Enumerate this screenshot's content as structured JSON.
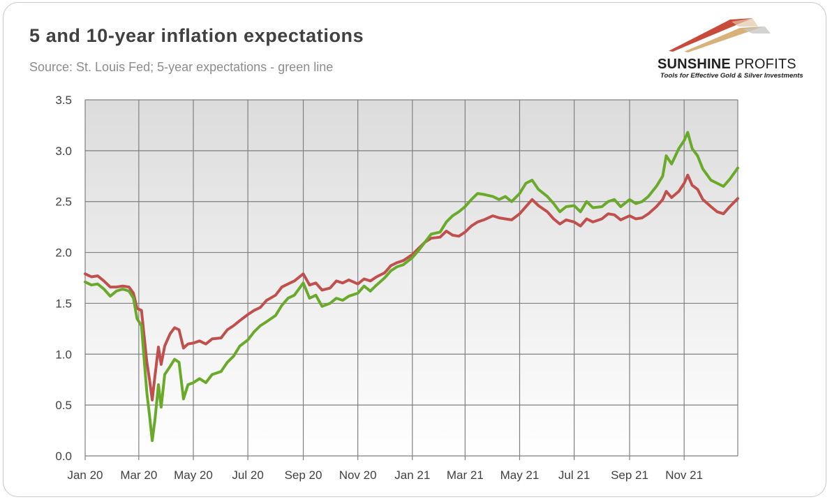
{
  "title": "5 and 10-year inflation expectations",
  "subtitle": "Source: St. Louis Fed; 5-year expectations - green line",
  "logo": {
    "name_part1": "SUNSHINE",
    "name_part2": " PROFITS",
    "tagline": "Tools for Effective Gold & Silver Investments"
  },
  "colors": {
    "series_5y": "#6aaa2a",
    "series_10y": "#c0504d",
    "plot_bg_top": "#dcdcdc",
    "plot_bg_bottom": "#ffffff",
    "grid": "#7f7f7f"
  },
  "chart_data": {
    "type": "line",
    "title": "5 and 10-year inflation expectations",
    "subtitle": "Source: St. Louis Fed; 5-year expectations - green line",
    "x_tick_labels": [
      "Jan 20",
      "Mar 20",
      "May 20",
      "Jul 20",
      "Sep 20",
      "Nov 20",
      "Jan 21",
      "Mar 21",
      "May 21",
      "Jul 21",
      "Sep 21",
      "Nov 21"
    ],
    "x_tick_dates": [
      "2020-01-01",
      "2020-03-01",
      "2020-05-01",
      "2020-07-01",
      "2020-09-01",
      "2020-11-01",
      "2021-01-01",
      "2021-03-01",
      "2021-05-01",
      "2021-07-01",
      "2021-09-01",
      "2021-11-01"
    ],
    "xlim": [
      "2020-01-01",
      "2021-12-31"
    ],
    "ylim": [
      0,
      3.5
    ],
    "yticks": [
      0.0,
      0.5,
      1.0,
      1.5,
      2.0,
      2.5,
      3.0,
      3.5
    ],
    "ytick_labels": [
      "0.0",
      "0.5",
      "1.0",
      "1.5",
      "2.0",
      "2.5",
      "3.0",
      "3.5"
    ],
    "grid": true,
    "legend": "none",
    "series": [
      {
        "color": "#6aaa2a",
        "points": [
          [
            "2020-01-01",
            1.71
          ],
          [
            "2020-01-08",
            1.68
          ],
          [
            "2020-01-15",
            1.69
          ],
          [
            "2020-01-22",
            1.64
          ],
          [
            "2020-01-29",
            1.57
          ],
          [
            "2020-02-05",
            1.62
          ],
          [
            "2020-02-12",
            1.64
          ],
          [
            "2020-02-19",
            1.62
          ],
          [
            "2020-02-24",
            1.55
          ],
          [
            "2020-02-28",
            1.35
          ],
          [
            "2020-03-04",
            1.28
          ],
          [
            "2020-03-07",
            0.95
          ],
          [
            "2020-03-10",
            0.62
          ],
          [
            "2020-03-13",
            0.4
          ],
          [
            "2020-03-16",
            0.15
          ],
          [
            "2020-03-19",
            0.35
          ],
          [
            "2020-03-23",
            0.7
          ],
          [
            "2020-03-26",
            0.48
          ],
          [
            "2020-03-30",
            0.8
          ],
          [
            "2020-04-05",
            0.88
          ],
          [
            "2020-04-10",
            0.95
          ],
          [
            "2020-04-15",
            0.92
          ],
          [
            "2020-04-20",
            0.56
          ],
          [
            "2020-04-25",
            0.7
          ],
          [
            "2020-05-01",
            0.72
          ],
          [
            "2020-05-08",
            0.76
          ],
          [
            "2020-05-15",
            0.72
          ],
          [
            "2020-05-22",
            0.8
          ],
          [
            "2020-06-01",
            0.83
          ],
          [
            "2020-06-08",
            0.92
          ],
          [
            "2020-06-15",
            0.98
          ],
          [
            "2020-06-22",
            1.08
          ],
          [
            "2020-07-01",
            1.14
          ],
          [
            "2020-07-08",
            1.22
          ],
          [
            "2020-07-15",
            1.28
          ],
          [
            "2020-07-22",
            1.32
          ],
          [
            "2020-08-01",
            1.38
          ],
          [
            "2020-08-08",
            1.48
          ],
          [
            "2020-08-15",
            1.55
          ],
          [
            "2020-08-22",
            1.58
          ],
          [
            "2020-09-01",
            1.7
          ],
          [
            "2020-09-08",
            1.55
          ],
          [
            "2020-09-15",
            1.58
          ],
          [
            "2020-09-22",
            1.47
          ],
          [
            "2020-10-01",
            1.5
          ],
          [
            "2020-10-08",
            1.55
          ],
          [
            "2020-10-15",
            1.53
          ],
          [
            "2020-10-22",
            1.57
          ],
          [
            "2020-11-01",
            1.6
          ],
          [
            "2020-11-08",
            1.67
          ],
          [
            "2020-11-15",
            1.62
          ],
          [
            "2020-11-22",
            1.68
          ],
          [
            "2020-12-01",
            1.75
          ],
          [
            "2020-12-08",
            1.82
          ],
          [
            "2020-12-15",
            1.86
          ],
          [
            "2020-12-22",
            1.88
          ],
          [
            "2021-01-01",
            1.95
          ],
          [
            "2021-01-08",
            2.02
          ],
          [
            "2021-01-15",
            2.1
          ],
          [
            "2021-01-22",
            2.18
          ],
          [
            "2021-02-01",
            2.2
          ],
          [
            "2021-02-08",
            2.3
          ],
          [
            "2021-02-15",
            2.36
          ],
          [
            "2021-02-22",
            2.4
          ],
          [
            "2021-03-01",
            2.45
          ],
          [
            "2021-03-08",
            2.52
          ],
          [
            "2021-03-15",
            2.58
          ],
          [
            "2021-03-22",
            2.57
          ],
          [
            "2021-04-01",
            2.55
          ],
          [
            "2021-04-08",
            2.52
          ],
          [
            "2021-04-15",
            2.55
          ],
          [
            "2021-04-22",
            2.5
          ],
          [
            "2021-05-01",
            2.58
          ],
          [
            "2021-05-08",
            2.68
          ],
          [
            "2021-05-15",
            2.71
          ],
          [
            "2021-05-22",
            2.62
          ],
          [
            "2021-06-01",
            2.55
          ],
          [
            "2021-06-08",
            2.48
          ],
          [
            "2021-06-15",
            2.4
          ],
          [
            "2021-06-22",
            2.45
          ],
          [
            "2021-07-01",
            2.46
          ],
          [
            "2021-07-08",
            2.4
          ],
          [
            "2021-07-15",
            2.5
          ],
          [
            "2021-07-22",
            2.44
          ],
          [
            "2021-08-01",
            2.45
          ],
          [
            "2021-08-08",
            2.5
          ],
          [
            "2021-08-15",
            2.52
          ],
          [
            "2021-08-22",
            2.45
          ],
          [
            "2021-09-01",
            2.52
          ],
          [
            "2021-09-08",
            2.48
          ],
          [
            "2021-09-15",
            2.5
          ],
          [
            "2021-09-22",
            2.55
          ],
          [
            "2021-10-01",
            2.65
          ],
          [
            "2021-10-08",
            2.75
          ],
          [
            "2021-10-12",
            2.95
          ],
          [
            "2021-10-18",
            2.87
          ],
          [
            "2021-10-26",
            3.02
          ],
          [
            "2021-11-01",
            3.1
          ],
          [
            "2021-11-05",
            3.18
          ],
          [
            "2021-11-10",
            3.02
          ],
          [
            "2021-11-16",
            2.95
          ],
          [
            "2021-11-22",
            2.82
          ],
          [
            "2021-12-01",
            2.71
          ],
          [
            "2021-12-08",
            2.68
          ],
          [
            "2021-12-15",
            2.65
          ],
          [
            "2021-12-22",
            2.72
          ],
          [
            "2021-12-31",
            2.83
          ]
        ]
      },
      {
        "color": "#c0504d",
        "points": [
          [
            "2020-01-01",
            1.79
          ],
          [
            "2020-01-08",
            1.76
          ],
          [
            "2020-01-15",
            1.77
          ],
          [
            "2020-01-22",
            1.72
          ],
          [
            "2020-01-29",
            1.66
          ],
          [
            "2020-02-05",
            1.66
          ],
          [
            "2020-02-12",
            1.67
          ],
          [
            "2020-02-19",
            1.66
          ],
          [
            "2020-02-24",
            1.6
          ],
          [
            "2020-02-28",
            1.45
          ],
          [
            "2020-03-04",
            1.43
          ],
          [
            "2020-03-07",
            1.18
          ],
          [
            "2020-03-10",
            0.92
          ],
          [
            "2020-03-13",
            0.75
          ],
          [
            "2020-03-16",
            0.55
          ],
          [
            "2020-03-19",
            0.78
          ],
          [
            "2020-03-23",
            1.07
          ],
          [
            "2020-03-26",
            0.9
          ],
          [
            "2020-03-30",
            1.08
          ],
          [
            "2020-04-05",
            1.2
          ],
          [
            "2020-04-10",
            1.26
          ],
          [
            "2020-04-15",
            1.24
          ],
          [
            "2020-04-20",
            1.06
          ],
          [
            "2020-04-25",
            1.1
          ],
          [
            "2020-05-01",
            1.11
          ],
          [
            "2020-05-08",
            1.13
          ],
          [
            "2020-05-15",
            1.1
          ],
          [
            "2020-05-22",
            1.15
          ],
          [
            "2020-06-01",
            1.16
          ],
          [
            "2020-06-08",
            1.24
          ],
          [
            "2020-06-15",
            1.28
          ],
          [
            "2020-06-22",
            1.33
          ],
          [
            "2020-07-01",
            1.39
          ],
          [
            "2020-07-08",
            1.43
          ],
          [
            "2020-07-15",
            1.46
          ],
          [
            "2020-07-22",
            1.53
          ],
          [
            "2020-08-01",
            1.58
          ],
          [
            "2020-08-08",
            1.66
          ],
          [
            "2020-08-15",
            1.69
          ],
          [
            "2020-08-22",
            1.72
          ],
          [
            "2020-09-01",
            1.79
          ],
          [
            "2020-09-08",
            1.68
          ],
          [
            "2020-09-15",
            1.7
          ],
          [
            "2020-09-22",
            1.63
          ],
          [
            "2020-10-01",
            1.65
          ],
          [
            "2020-10-08",
            1.72
          ],
          [
            "2020-10-15",
            1.7
          ],
          [
            "2020-10-22",
            1.73
          ],
          [
            "2020-11-01",
            1.69
          ],
          [
            "2020-11-08",
            1.74
          ],
          [
            "2020-11-15",
            1.72
          ],
          [
            "2020-11-22",
            1.76
          ],
          [
            "2020-12-01",
            1.8
          ],
          [
            "2020-12-08",
            1.87
          ],
          [
            "2020-12-15",
            1.9
          ],
          [
            "2020-12-22",
            1.92
          ],
          [
            "2021-01-01",
            1.98
          ],
          [
            "2021-01-08",
            2.04
          ],
          [
            "2021-01-15",
            2.1
          ],
          [
            "2021-01-22",
            2.14
          ],
          [
            "2021-02-01",
            2.15
          ],
          [
            "2021-02-08",
            2.21
          ],
          [
            "2021-02-15",
            2.17
          ],
          [
            "2021-02-22",
            2.16
          ],
          [
            "2021-03-01",
            2.2
          ],
          [
            "2021-03-08",
            2.26
          ],
          [
            "2021-03-15",
            2.3
          ],
          [
            "2021-03-22",
            2.32
          ],
          [
            "2021-04-01",
            2.36
          ],
          [
            "2021-04-08",
            2.34
          ],
          [
            "2021-04-15",
            2.33
          ],
          [
            "2021-04-22",
            2.32
          ],
          [
            "2021-05-01",
            2.38
          ],
          [
            "2021-05-08",
            2.45
          ],
          [
            "2021-05-15",
            2.52
          ],
          [
            "2021-05-22",
            2.46
          ],
          [
            "2021-06-01",
            2.4
          ],
          [
            "2021-06-08",
            2.33
          ],
          [
            "2021-06-15",
            2.28
          ],
          [
            "2021-06-22",
            2.32
          ],
          [
            "2021-07-01",
            2.3
          ],
          [
            "2021-07-08",
            2.26
          ],
          [
            "2021-07-15",
            2.33
          ],
          [
            "2021-07-22",
            2.3
          ],
          [
            "2021-08-01",
            2.33
          ],
          [
            "2021-08-08",
            2.38
          ],
          [
            "2021-08-15",
            2.37
          ],
          [
            "2021-08-22",
            2.32
          ],
          [
            "2021-09-01",
            2.36
          ],
          [
            "2021-09-08",
            2.33
          ],
          [
            "2021-09-15",
            2.34
          ],
          [
            "2021-09-22",
            2.38
          ],
          [
            "2021-10-01",
            2.45
          ],
          [
            "2021-10-08",
            2.52
          ],
          [
            "2021-10-12",
            2.6
          ],
          [
            "2021-10-18",
            2.54
          ],
          [
            "2021-10-26",
            2.6
          ],
          [
            "2021-11-01",
            2.68
          ],
          [
            "2021-11-05",
            2.76
          ],
          [
            "2021-11-10",
            2.66
          ],
          [
            "2021-11-16",
            2.62
          ],
          [
            "2021-11-22",
            2.52
          ],
          [
            "2021-12-01",
            2.45
          ],
          [
            "2021-12-08",
            2.4
          ],
          [
            "2021-12-15",
            2.38
          ],
          [
            "2021-12-22",
            2.45
          ],
          [
            "2021-12-31",
            2.53
          ]
        ]
      }
    ]
  }
}
